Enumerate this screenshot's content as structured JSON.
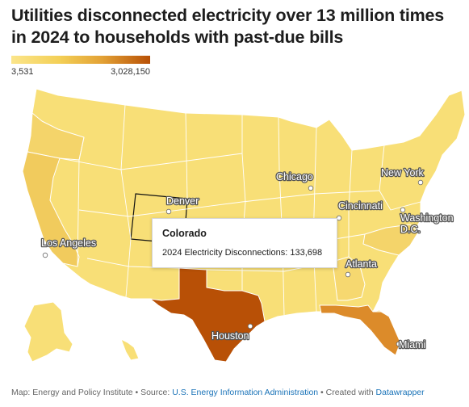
{
  "title": "Utilities disconnected electricity over 13 million times in 2024 to households with past-due bills",
  "legend": {
    "min_label": "3,531",
    "max_label": "3,028,150",
    "color_low": "#fbe58a",
    "color_high": "#b85006"
  },
  "cities": [
    {
      "name": "Chicago"
    },
    {
      "name": "New York"
    },
    {
      "name": "Denver"
    },
    {
      "name": "Cincinnati"
    },
    {
      "name": "Washington D.C."
    },
    {
      "name": "Los Angeles"
    },
    {
      "name": "Atlanta"
    },
    {
      "name": "Houston"
    },
    {
      "name": "Miami"
    }
  ],
  "tooltip": {
    "state": "Colorado",
    "metric_label": "2024 Electricity Disconnections:",
    "metric_value": "133,698"
  },
  "highlighted_states": [
    {
      "state": "Texas",
      "level": "highest",
      "color": "#b85006"
    },
    {
      "state": "Florida",
      "level": "high",
      "color": "#dc8b2a"
    }
  ],
  "footer": {
    "prefix": "Map: Energy and Policy Institute • Source:",
    "source_link": "U.S. Energy Information Administration",
    "middle": "• Created with",
    "tool_link": "Datawrapper"
  }
}
